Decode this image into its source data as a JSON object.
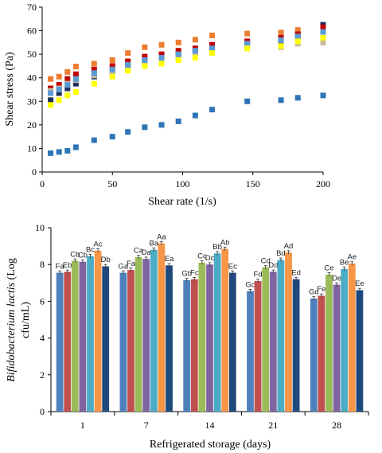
{
  "chart_data": [
    {
      "type": "scatter",
      "xlabel": "Shear rate (1/s)",
      "ylabel": "Shear stress (Pa)",
      "xlim": [
        0,
        200
      ],
      "ylim": [
        0,
        70
      ],
      "xticks": [
        "0",
        "50",
        "100",
        "150",
        "200"
      ],
      "yticks": [
        "0",
        "10",
        "20",
        "30",
        "40",
        "50",
        "60",
        "70"
      ],
      "grid": false,
      "series": [
        {
          "color": "#ED7D31",
          "x": [
            6,
            12,
            18,
            24,
            37,
            50,
            61,
            73,
            85,
            97,
            109,
            121,
            146,
            170,
            182,
            200
          ],
          "y": [
            39.5,
            40.5,
            42.5,
            44.8,
            46,
            47.5,
            50.5,
            53,
            54,
            55,
            56.2,
            58,
            58.8,
            59.2,
            60.3,
            60.8
          ]
        },
        {
          "color": "#1F2E5A",
          "x": [
            6,
            12,
            18,
            24,
            37,
            50,
            61,
            73,
            85,
            97,
            109,
            121,
            146,
            170,
            182,
            200
          ],
          "y": [
            30.5,
            33.5,
            35.5,
            37.5,
            40.5,
            43,
            45.5,
            47.5,
            49.5,
            50.5,
            51.5,
            53.5,
            54.5,
            55.5,
            58,
            62.5
          ]
        },
        {
          "color": "#C00000",
          "x": [
            6,
            12,
            18,
            24,
            37,
            50,
            61,
            73,
            85,
            97,
            109,
            121,
            146,
            170,
            182,
            200
          ],
          "y": [
            35.5,
            37,
            39.5,
            41.5,
            43.5,
            45,
            47,
            49,
            50,
            51.5,
            52.5,
            54,
            55.5,
            57,
            58.5,
            61.5
          ]
        },
        {
          "color": "#C9B99A",
          "x": [
            6,
            12,
            18,
            24,
            37,
            50,
            61,
            73,
            85,
            97,
            109,
            121,
            146,
            170,
            182,
            200
          ],
          "y": [
            34.5,
            35.5,
            37.5,
            39,
            41,
            42,
            44,
            46,
            47,
            48.5,
            49.5,
            51,
            52.5,
            53,
            54.5,
            55
          ]
        },
        {
          "color": "#5B9BD5",
          "x": [
            6,
            12,
            18,
            24,
            37,
            50,
            61,
            73,
            85,
            97,
            109,
            121,
            146,
            170,
            182,
            200
          ],
          "y": [
            33.5,
            35,
            37,
            39.5,
            42,
            43.5,
            45.5,
            47.5,
            48.5,
            50,
            51.5,
            52.5,
            54.5,
            56,
            57.5,
            59.5
          ]
        },
        {
          "color": "#FFFF00",
          "x": [
            6,
            12,
            18,
            24,
            37,
            50,
            61,
            73,
            85,
            97,
            109,
            121,
            146,
            170,
            182,
            200
          ],
          "y": [
            28.5,
            30.5,
            32.5,
            34,
            37.5,
            40.5,
            43,
            45,
            46,
            47.5,
            48.5,
            50.5,
            52.5,
            53.5,
            55.5,
            57
          ]
        },
        {
          "color": "#2E75B6",
          "x": [
            6,
            12,
            18,
            24,
            37,
            50,
            61,
            73,
            85,
            97,
            109,
            121,
            146,
            170,
            182,
            200
          ],
          "y": [
            8,
            8.5,
            9,
            10.5,
            13.5,
            15,
            17,
            19,
            20,
            21.5,
            24,
            26.5,
            30,
            30.5,
            31.5,
            32.5
          ]
        }
      ]
    },
    {
      "type": "bar",
      "xlabel": "Refrigerated storage (days)",
      "ylabel_italic": "Bifidobacterium lactis",
      "ylabel_rest": " (Log",
      "ylabel_line2": "cfu/mL)",
      "categories": [
        "1",
        "7",
        "14",
        "21",
        "28"
      ],
      "ylim": [
        0,
        10
      ],
      "yticks": [
        "0",
        "2",
        "4",
        "6",
        "8",
        "10"
      ],
      "grid": false,
      "series": [
        {
          "color": "#4F81BD",
          "values": [
            7.55,
            7.55,
            7.15,
            6.55,
            6.15
          ],
          "labels": [
            "Fa",
            "Ga",
            "Gb",
            "Gc",
            "Gd"
          ]
        },
        {
          "color": "#C0504D",
          "values": [
            7.6,
            7.7,
            7.2,
            7.1,
            6.3
          ],
          "labels": [
            "Eb",
            "Fa",
            "Fc",
            "Fd",
            "Fe"
          ]
        },
        {
          "color": "#9BBB59",
          "values": [
            8.2,
            8.4,
            8.1,
            7.85,
            7.45
          ],
          "labels": [
            "Cb",
            "Ca",
            "Cc",
            "Cd",
            "Ce"
          ]
        },
        {
          "color": "#8064A2",
          "values": [
            8.15,
            8.3,
            8.0,
            7.6,
            6.9
          ],
          "labels": [
            "Cb",
            "Da",
            "Dc",
            "Dd",
            "De"
          ]
        },
        {
          "color": "#4BACC6",
          "values": [
            8.45,
            8.8,
            8.6,
            8.25,
            7.75
          ],
          "labels": [
            "Bc",
            "Ba",
            "Bb",
            "Bd",
            "Be"
          ]
        },
        {
          "color": "#F79646",
          "values": [
            8.75,
            9.15,
            8.85,
            8.65,
            8.05
          ],
          "labels": [
            "Ac",
            "Aa",
            "Ab",
            "Ad",
            "Ae"
          ]
        },
        {
          "color": "#1F497D",
          "values": [
            7.9,
            7.95,
            7.55,
            7.2,
            6.6
          ],
          "labels": [
            "Db",
            "Ea",
            "Ec",
            "Ed",
            "Ee"
          ]
        }
      ]
    }
  ]
}
